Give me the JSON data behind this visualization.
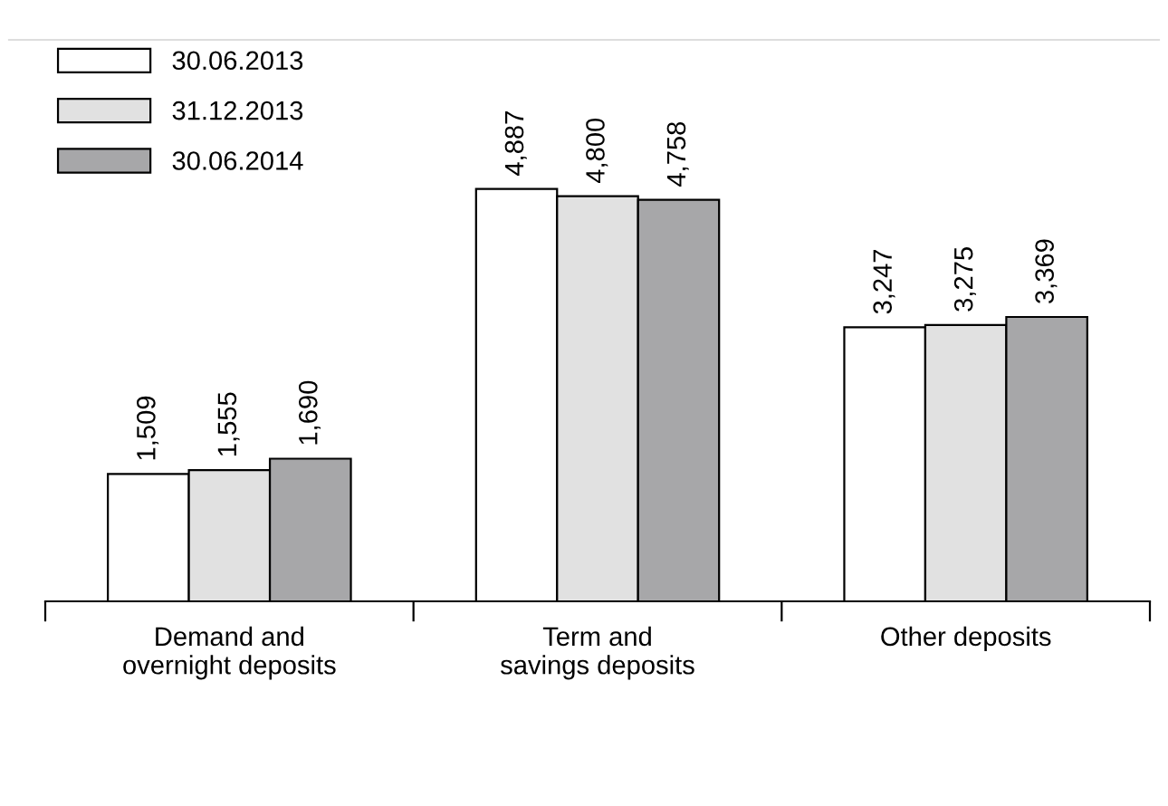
{
  "chart_data": {
    "type": "bar",
    "categories": [
      "Demand and\novernight deposits",
      "Term and\nsavings deposits",
      "Other deposits"
    ],
    "series": [
      {
        "name": "30.06.2013",
        "color": "#ffffff",
        "values": [
          1509,
          4887,
          3247
        ],
        "value_labels": [
          "1,509",
          "4,887",
          "3,247"
        ]
      },
      {
        "name": "31.12.2013",
        "color": "#e1e1e1",
        "values": [
          1555,
          4800,
          3275
        ],
        "value_labels": [
          "1,555",
          "4,800",
          "3,275"
        ]
      },
      {
        "name": "30.06.2014",
        "color": "#a7a7a9",
        "values": [
          1690,
          4758,
          3369
        ],
        "value_labels": [
          "1,690",
          "4,758",
          "3,369"
        ]
      }
    ],
    "legend": "top left",
    "grid": false,
    "tick_labels": "x"
  }
}
